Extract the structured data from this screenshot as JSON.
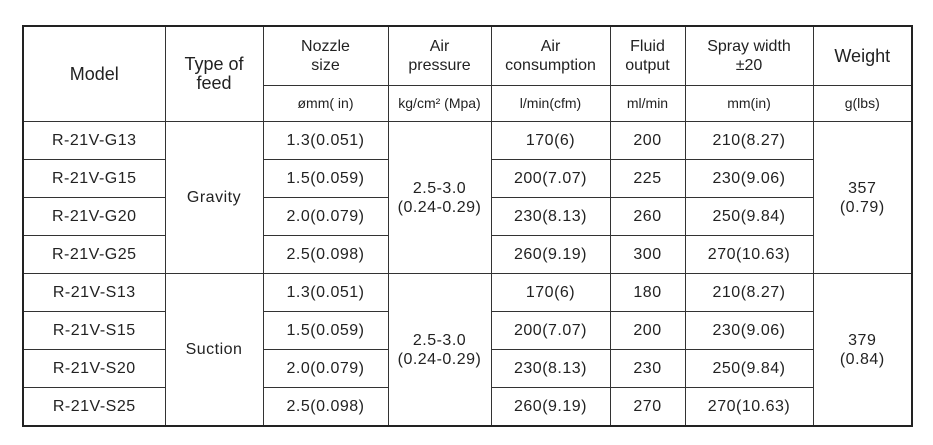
{
  "table": {
    "headers": [
      "Model",
      "Type of feed",
      "Nozzle\nsize",
      "Air\npressure",
      "Air\nconsumption",
      "Fluid\noutput",
      "Spray width\n±20",
      "Weight"
    ],
    "units": [
      "ømm( in)",
      "kg/cm² (Mpa)",
      "l/min(cfm)",
      "ml/min",
      "mm(in)",
      "g(lbs)"
    ],
    "groups": [
      {
        "feed": "Gravity",
        "air_pressure": "2.5-3.0\n(0.24-0.29)",
        "weight": "357\n(0.79)",
        "rows": [
          [
            "R-21V-G13",
            "1.3(0.051)",
            "170(6)",
            "200",
            "210(8.27)"
          ],
          [
            "R-21V-G15",
            "1.5(0.059)",
            "200(7.07)",
            "225",
            "230(9.06)"
          ],
          [
            "R-21V-G20",
            "2.0(0.079)",
            "230(8.13)",
            "260",
            "250(9.84)"
          ],
          [
            "R-21V-G25",
            "2.5(0.098)",
            "260(9.19)",
            "300",
            "270(10.63)"
          ]
        ]
      },
      {
        "feed": "Suction",
        "air_pressure": "2.5-3.0\n(0.24-0.29)",
        "weight": "379\n(0.84)",
        "rows": [
          [
            "R-21V-S13",
            "1.3(0.051)",
            "170(6)",
            "180",
            "210(8.27)"
          ],
          [
            "R-21V-S15",
            "1.5(0.059)",
            "200(7.07)",
            "200",
            "230(9.06)"
          ],
          [
            "R-21V-S20",
            "2.0(0.079)",
            "230(8.13)",
            "230",
            "250(9.84)"
          ],
          [
            "R-21V-S25",
            "2.5(0.098)",
            "260(9.19)",
            "270",
            "270(10.63)"
          ]
        ]
      }
    ]
  }
}
